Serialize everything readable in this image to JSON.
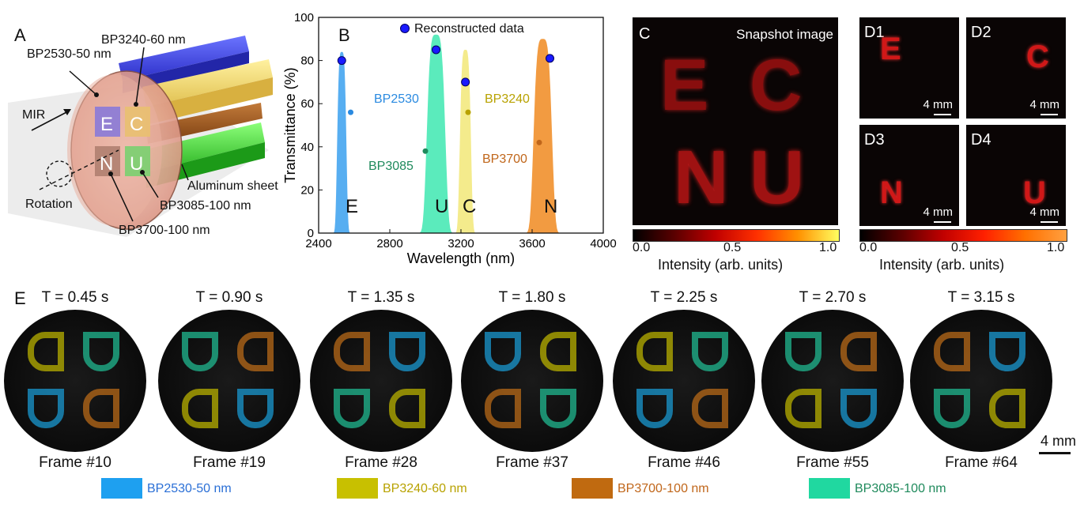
{
  "panelA": {
    "label": "A",
    "filter_labels": [
      {
        "text": "BP2530-50 nm",
        "color": "#2a6fd6"
      },
      {
        "text": "BP3240-60 nm",
        "color": "#b8a200"
      },
      {
        "text": "BP3085-100 nm",
        "color": "#1f8a4c"
      },
      {
        "text": "BP3700-100 nm",
        "color": "#c0661a"
      }
    ],
    "mir": "MIR",
    "rotation": "Rotation",
    "aluminum": "Aluminum sheet",
    "letters": [
      "E",
      "C",
      "N",
      "U"
    ]
  },
  "panelB": {
    "label": "B",
    "legend": "Reconstructed data",
    "letters": [
      "E",
      "U",
      "C",
      "N"
    ],
    "peak_labels": [
      {
        "text": "BP2530",
        "color": "#2a8ae0"
      },
      {
        "text": "BP3085",
        "color": "#1f8a5c"
      },
      {
        "text": "BP3240",
        "color": "#b8a200"
      },
      {
        "text": "BP3700",
        "color": "#c0661a"
      }
    ]
  },
  "chart_data": {
    "type": "area",
    "xlabel": "Wavelength (nm)",
    "ylabel": "Transmittance (%)",
    "xlim": [
      2400,
      4000
    ],
    "ylim": [
      0,
      100
    ],
    "xticks": [
      2400,
      2800,
      3200,
      3600,
      4000
    ],
    "yticks": [
      0,
      20,
      40,
      60,
      80,
      100
    ],
    "series": [
      {
        "name": "BP2530",
        "color": "#3aa0ee",
        "center": 2530,
        "fwhm": 50,
        "peak": 84
      },
      {
        "name": "BP3085",
        "color": "#3ee8b0",
        "center": 3060,
        "fwhm": 100,
        "peak": 92
      },
      {
        "name": "BP3240",
        "color": "#f2e878",
        "center": 3225,
        "fwhm": 60,
        "peak": 85
      },
      {
        "name": "BP3700",
        "color": "#f08a20",
        "center": 3660,
        "fwhm": 100,
        "peak": 90
      }
    ],
    "reconstructed": [
      {
        "x": 2530,
        "y": 80
      },
      {
        "x": 3060,
        "y": 85
      },
      {
        "x": 3225,
        "y": 70
      },
      {
        "x": 3700,
        "y": 81
      }
    ]
  },
  "panelC": {
    "label": "C",
    "title": "Snapshot image",
    "letters": [
      "E",
      "C",
      "N",
      "U"
    ],
    "colorbar": {
      "min": "0.0",
      "mid": "0.5",
      "max": "1.0",
      "label": "Intensity (arb. units)"
    }
  },
  "panelD": {
    "subpanels": [
      {
        "label": "D1",
        "letter": "E",
        "scale": "4 mm"
      },
      {
        "label": "D2",
        "letter": "C",
        "scale": "4 mm"
      },
      {
        "label": "D3",
        "letter": "N",
        "scale": "4 mm"
      },
      {
        "label": "D4",
        "letter": "U",
        "scale": "4 mm"
      }
    ],
    "colorbar": {
      "min": "0.0",
      "mid": "0.5",
      "max": "1.0",
      "label": "Intensity (arb. units)"
    }
  },
  "panelE": {
    "label": "E",
    "frames": [
      {
        "time": "T = 0.45 s",
        "frame": "Frame #10"
      },
      {
        "time": "T = 0.90 s",
        "frame": "Frame #19"
      },
      {
        "time": "T = 1.35 s",
        "frame": "Frame #28"
      },
      {
        "time": "T = 1.80 s",
        "frame": "Frame #37"
      },
      {
        "time": "T = 2.25 s",
        "frame": "Frame #46"
      },
      {
        "time": "T = 2.70 s",
        "frame": "Frame #55"
      },
      {
        "time": "T = 3.15 s",
        "frame": "Frame #64"
      }
    ],
    "scale": "4 mm",
    "legend": [
      {
        "text": "BP2530-50 nm",
        "color": "#1ea0f0",
        "text_color": "#2a6fd6"
      },
      {
        "text": "BP3240-60 nm",
        "color": "#c8c000",
        "text_color": "#b8a200"
      },
      {
        "text": "BP3700-100 nm",
        "color": "#c06a10",
        "text_color": "#c0661a"
      },
      {
        "text": "BP3085-100 nm",
        "color": "#20d8a0",
        "text_color": "#1f8a5c"
      }
    ]
  }
}
